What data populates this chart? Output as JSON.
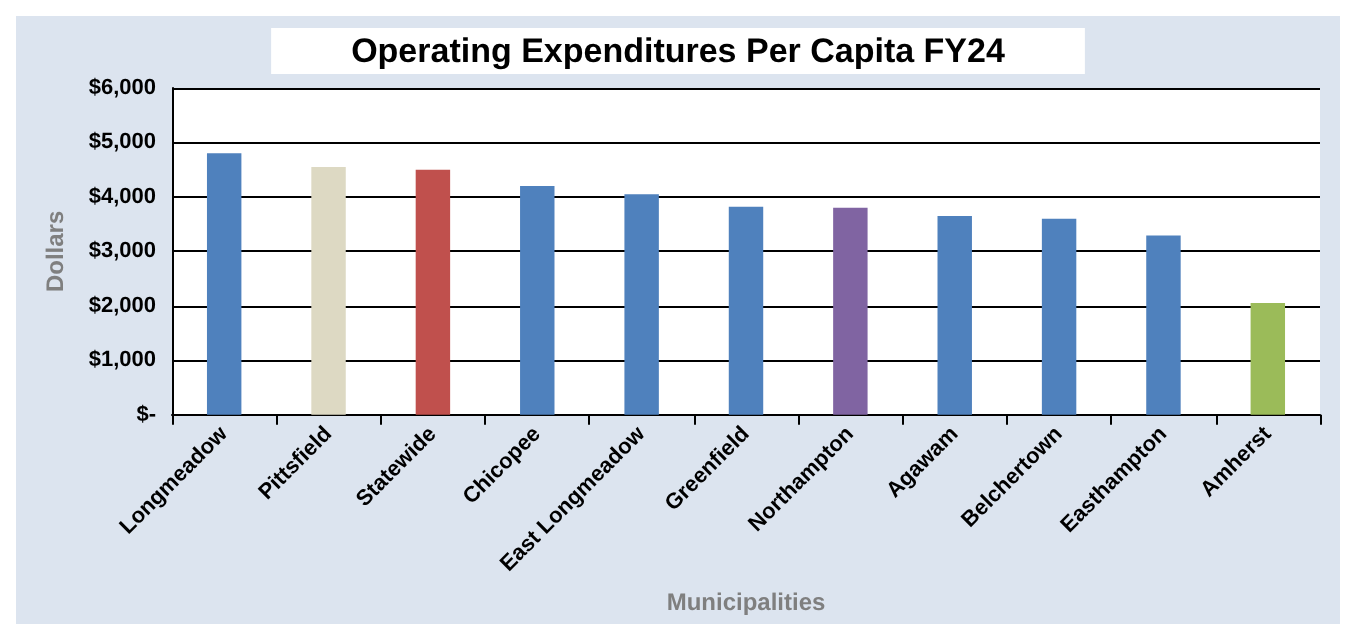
{
  "chart_data": {
    "type": "bar",
    "title": "Operating Expenditures Per Capita FY24",
    "xlabel": "Municipalities",
    "ylabel": "Dollars",
    "categories": [
      "Longmeadow",
      "Pittsfield",
      "Statewide",
      "Chicopee",
      "East Longmeadow",
      "Greenfield",
      "Northampton",
      "Agawam",
      "Belchertown",
      "Easthampton",
      "Amherst"
    ],
    "values": [
      4800,
      4550,
      4500,
      4200,
      4050,
      3820,
      3800,
      3650,
      3600,
      3290,
      2050
    ],
    "colors": [
      "#4f81bd",
      "#ddd9c3",
      "#c0504d",
      "#4f81bd",
      "#4f81bd",
      "#4f81bd",
      "#8064a2",
      "#4f81bd",
      "#4f81bd",
      "#4f81bd",
      "#9bbb59"
    ],
    "ylim": [
      0,
      6000
    ],
    "yticks": [
      {
        "value": 0,
        "label": "$-"
      },
      {
        "value": 1000,
        "label": "$1,000"
      },
      {
        "value": 2000,
        "label": "$2,000"
      },
      {
        "value": 3000,
        "label": "$3,000"
      },
      {
        "value": 4000,
        "label": "$4,000"
      },
      {
        "value": 5000,
        "label": "$5,000"
      },
      {
        "value": 6000,
        "label": "$6,000"
      }
    ],
    "grid": "y"
  }
}
